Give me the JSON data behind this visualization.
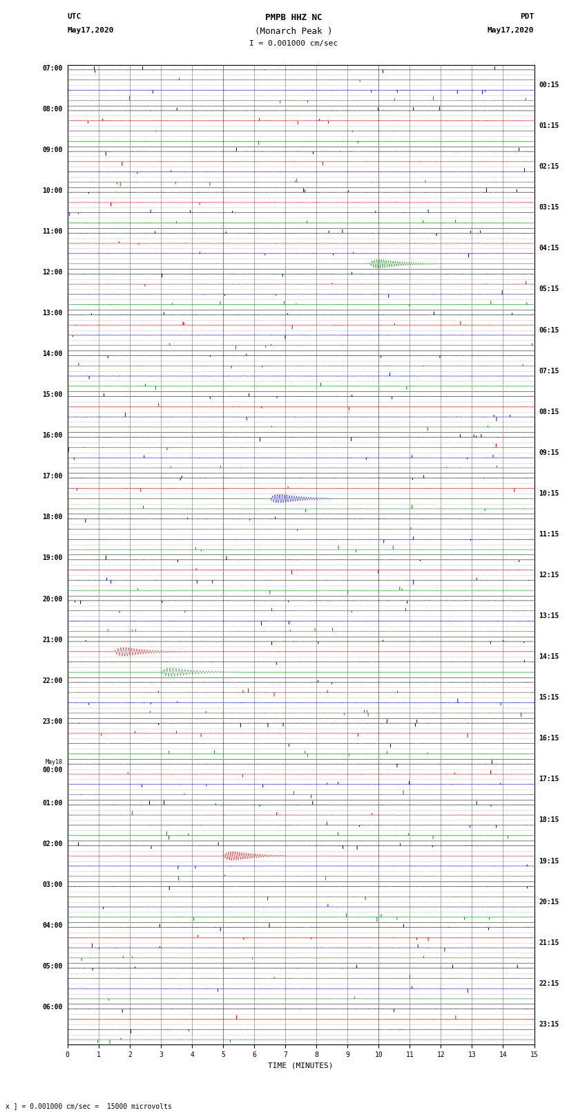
{
  "title_line1": "PMPB HHZ NC",
  "title_line2": "(Monarch Peak )",
  "scale_text": "I = 0.001000 cm/sec",
  "utc_label": "UTC",
  "utc_date": "May17,2020",
  "pdt_label": "PDT",
  "pdt_date": "May17,2020",
  "bottom_note": "x ] = 0.001000 cm/sec =  15000 microvolts",
  "xlabel": "TIME (MINUTES)",
  "bg_color": "#ffffff",
  "grid_major_color": "#888888",
  "grid_minor_color": "#cccccc",
  "fig_width": 8.5,
  "fig_height": 16.13,
  "xlim": [
    0,
    15
  ],
  "xticks": [
    0,
    1,
    2,
    3,
    4,
    5,
    6,
    7,
    8,
    9,
    10,
    11,
    12,
    13,
    14,
    15
  ],
  "hours_left": [
    "07:00",
    "08:00",
    "09:00",
    "10:00",
    "11:00",
    "12:00",
    "13:00",
    "14:00",
    "15:00",
    "16:00",
    "17:00",
    "18:00",
    "19:00",
    "20:00",
    "21:00",
    "22:00",
    "23:00",
    "May18\n00:00",
    "01:00",
    "02:00",
    "03:00",
    "04:00",
    "05:00",
    "06:00"
  ],
  "hours_right": [
    "00:15",
    "01:15",
    "02:15",
    "03:15",
    "04:15",
    "05:15",
    "06:15",
    "07:15",
    "08:15",
    "09:15",
    "10:15",
    "11:15",
    "12:15",
    "13:15",
    "14:15",
    "15:15",
    "16:15",
    "17:15",
    "18:15",
    "19:15",
    "20:15",
    "21:15",
    "22:15",
    "23:15"
  ]
}
